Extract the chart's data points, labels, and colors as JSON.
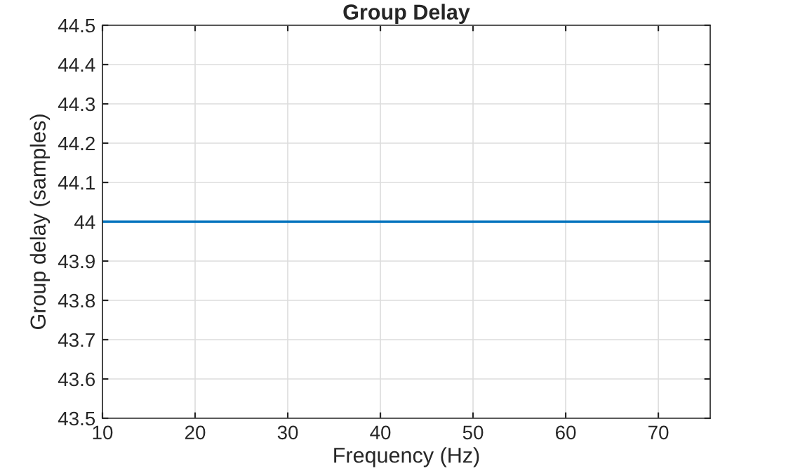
{
  "chart_data": {
    "type": "line",
    "title": "Group Delay",
    "xlabel": "Frequency (Hz)",
    "ylabel": "Group delay (samples)",
    "series": [
      {
        "color": "#0072bd",
        "x": [
          10,
          75.6
        ],
        "values": [
          44,
          44
        ]
      }
    ],
    "xlim": [
      10,
      75.6
    ],
    "xticks": [
      10,
      20,
      30,
      40,
      50,
      60,
      70
    ],
    "ylim": [
      43.5,
      44.5
    ],
    "yticks": [
      43.5,
      43.6,
      43.7,
      43.8,
      43.9,
      44,
      44.1,
      44.2,
      44.3,
      44.4,
      44.5
    ],
    "grid": true,
    "line_style": "solid",
    "marker": "none"
  }
}
